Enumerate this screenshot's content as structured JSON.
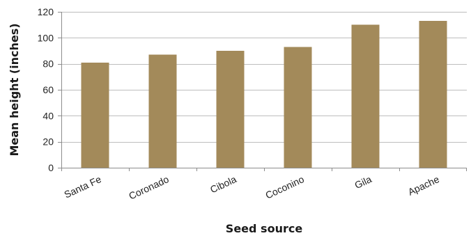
{
  "chart_data": {
    "type": "bar",
    "categories": [
      "Santa Fe",
      "Coronado",
      "Cibola",
      "Coconino",
      "Gila",
      "Apache"
    ],
    "values": [
      81,
      87,
      90,
      93,
      110,
      113
    ],
    "title": "",
    "xlabel": "Seed source",
    "ylabel": "Mean height (inches)",
    "ylim": [
      0,
      120
    ],
    "yticks": [
      0,
      20,
      40,
      60,
      80,
      100,
      120
    ],
    "grid": true,
    "legend": "none",
    "bar_color": "#a38a5a"
  }
}
